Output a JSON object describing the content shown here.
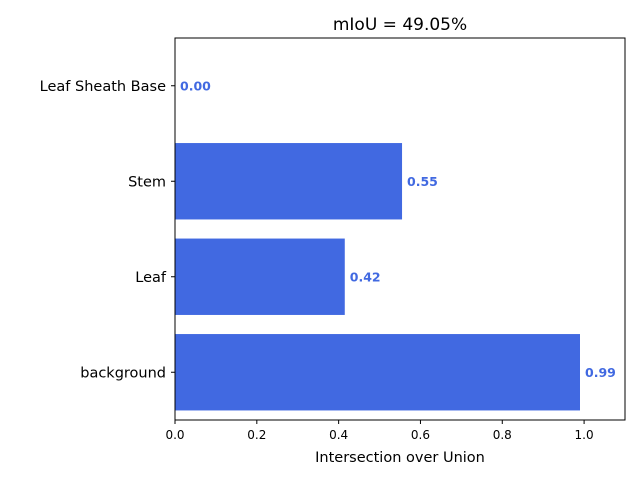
{
  "chart_data": {
    "type": "bar",
    "orientation": "horizontal",
    "title": "mIoU = 49.05%",
    "xlabel": "Intersection over Union",
    "ylabel": "",
    "categories": [
      "background",
      "Leaf",
      "Stem",
      "Leaf Sheath Base"
    ],
    "values": [
      0.99,
      0.415,
      0.555,
      0.0
    ],
    "value_labels": [
      "0.99",
      "0.42",
      "0.55",
      "0.00"
    ],
    "xlim": [
      0,
      1.1
    ],
    "xticks": [
      0.0,
      0.2,
      0.4,
      0.6,
      0.8,
      1.0
    ],
    "xtick_labels": [
      "0.0",
      "0.2",
      "0.4",
      "0.6",
      "0.8",
      "1.0"
    ],
    "grid": false,
    "bar_color": "#4169e1",
    "label_color": "#4169e1"
  }
}
